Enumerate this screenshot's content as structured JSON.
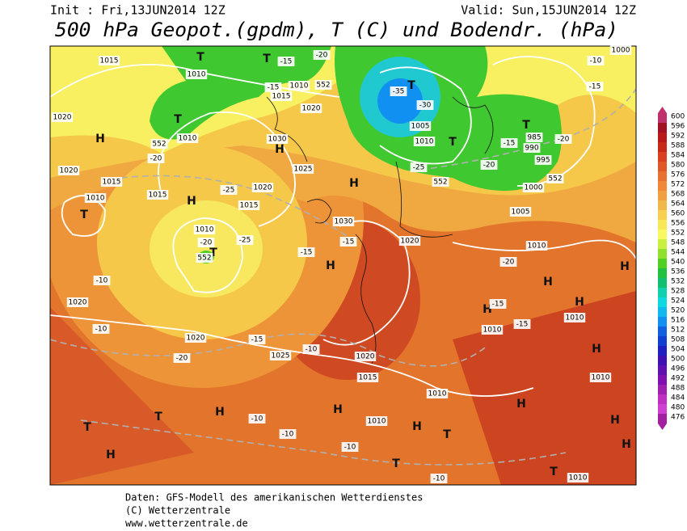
{
  "header": {
    "init": "Init : Fri,13JUN2014 12Z",
    "valid": "Valid: Sun,15JUN2014 12Z",
    "title": "500 hPa Geopot.(gpdm), T (C) und Bodendr. (hPa)"
  },
  "colorbar": {
    "labels": [
      "600",
      "596",
      "592",
      "588",
      "584",
      "580",
      "576",
      "572",
      "568",
      "564",
      "560",
      "556",
      "552",
      "548",
      "544",
      "540",
      "536",
      "532",
      "528",
      "524",
      "520",
      "516",
      "512",
      "508",
      "504",
      "500",
      "496",
      "492",
      "488",
      "484",
      "480",
      "476"
    ],
    "colors": [
      "#c0306a",
      "#a01020",
      "#b81818",
      "#c82818",
      "#d84020",
      "#e05828",
      "#e87030",
      "#f08838",
      "#f0a040",
      "#f0b848",
      "#f8d050",
      "#f8e858",
      "#f8f860",
      "#c8f040",
      "#90e030",
      "#50d020",
      "#20c040",
      "#10c070",
      "#10d0b0",
      "#10d8e0",
      "#10b8f0",
      "#1090f0",
      "#1060e0",
      "#1040d0",
      "#2020c0",
      "#4010b0",
      "#6010b0",
      "#8010b0",
      "#a020b0",
      "#c030c0",
      "#d040d0",
      "#a020a0"
    ]
  },
  "map_labels": [
    "H",
    "H",
    "H",
    "H",
    "H",
    "H",
    "H",
    "H",
    "H",
    "H",
    "H",
    "H",
    "H",
    "H",
    "H",
    "H",
    "H",
    "T",
    "T",
    "T",
    "T",
    "T",
    "T",
    "T",
    "T",
    "T",
    "T",
    "T",
    "T",
    "T",
    "1015",
    "1010",
    "1020",
    "1010",
    "1030",
    "1025",
    "1020",
    "1015",
    "1010",
    "1020",
    "1020",
    "1025",
    "1020",
    "1015",
    "1010",
    "1010",
    "1005",
    "1010",
    "1000",
    "1005",
    "1010",
    "1010",
    "1010",
    "1010",
    "1010",
    "995",
    "990",
    "985",
    "1000",
    "1020",
    "1030",
    "1015",
    "1015",
    "1020",
    "1010",
    "1015",
    "1020",
    "1010",
    "-20",
    "-25",
    "-20",
    "-25",
    "-15",
    "-15",
    "-10",
    "-10",
    "-20",
    "-15",
    "-10",
    "-10",
    "-10",
    "-10",
    "-10",
    "-15",
    "-15",
    "-20",
    "-20",
    "-25",
    "-30",
    "-35",
    "-15",
    "-20",
    "-15",
    "-10",
    "-15",
    "-20",
    "-15",
    "552",
    "552",
    "552",
    "552",
    "552"
  ],
  "footer": {
    "lines": [
      "Daten: GFS-Modell des amerikanischen Wetterdienstes",
      "(C) Wetterzentrale",
      "www.wetterzentrale.de"
    ]
  }
}
